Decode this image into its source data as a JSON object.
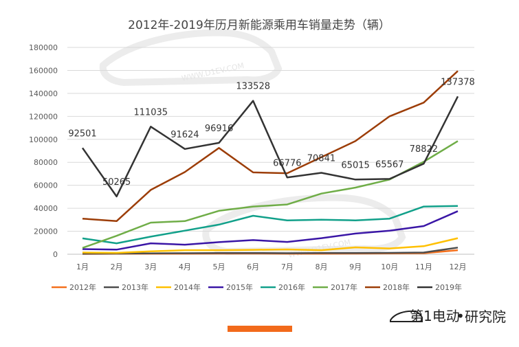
{
  "chart_data": {
    "type": "line",
    "title": "2012年-2019年历月新能源乘用车销量走势（辆）",
    "categories": [
      "1月",
      "2月",
      "3月",
      "4月",
      "5月",
      "6月",
      "7月",
      "8月",
      "9月",
      "10月",
      "11月",
      "12月"
    ],
    "ylim": [
      0,
      180000
    ],
    "yticks": [
      0,
      20000,
      40000,
      60000,
      80000,
      100000,
      120000,
      140000,
      160000,
      180000
    ],
    "ytick_labels": [
      "0",
      "20000",
      "40000",
      "60000",
      "80000",
      "100000",
      "120000",
      "140000",
      "160000",
      "180000"
    ],
    "grid": true,
    "legend_position": "bottom",
    "series": [
      {
        "name": "2012年",
        "color": "#f4701c",
        "values": [
          300,
          400,
          500,
          500,
          600,
          600,
          500,
          500,
          600,
          700,
          900,
          3500
        ]
      },
      {
        "name": "2013年",
        "color": "#4d4d4d",
        "values": [
          500,
          600,
          800,
          900,
          1000,
          1100,
          900,
          1000,
          1000,
          1200,
          1500,
          5800
        ]
      },
      {
        "name": "2014年",
        "color": "#ffc000",
        "values": [
          1500,
          1200,
          2500,
          3500,
          3500,
          3800,
          4200,
          3500,
          6000,
          5000,
          7000,
          14000
        ]
      },
      {
        "name": "2015年",
        "color": "#3a16a6",
        "values": [
          4500,
          4000,
          9500,
          8300,
          10500,
          12300,
          10700,
          14000,
          18000,
          20500,
          24500,
          37500
        ]
      },
      {
        "name": "2016年",
        "color": "#11a08a",
        "values": [
          13800,
          9500,
          15300,
          20500,
          25800,
          33500,
          29500,
          30000,
          29500,
          31000,
          41500,
          42000
        ]
      },
      {
        "name": "2017年",
        "color": "#6fad47",
        "values": [
          5500,
          16000,
          27500,
          28800,
          37800,
          41500,
          43300,
          52800,
          58000,
          65000,
          80500,
          98500
        ]
      },
      {
        "name": "2018年",
        "color": "#9c3d07",
        "values": [
          31000,
          28800,
          56000,
          71500,
          92500,
          71200,
          70500,
          84500,
          98500,
          120000,
          132000,
          159500
        ]
      },
      {
        "name": "2019年",
        "color": "#333333",
        "values": [
          92501,
          50265,
          111035,
          91624,
          96916,
          133528,
          66776,
          70841,
          65015,
          65567,
          78822,
          137378
        ],
        "data_labels": [
          "92501",
          "50265",
          "111035",
          "91624",
          "96916",
          "133528",
          "66776",
          "70841",
          "65015",
          "65567",
          "78822",
          "137378"
        ]
      }
    ]
  },
  "watermark": {
    "domain_text": "WWW.D1EV.COM"
  },
  "branding": {
    "logo_text": "第1电动",
    "separator": "•",
    "suffix": "研究院",
    "accent_color": "#f26a1b"
  }
}
